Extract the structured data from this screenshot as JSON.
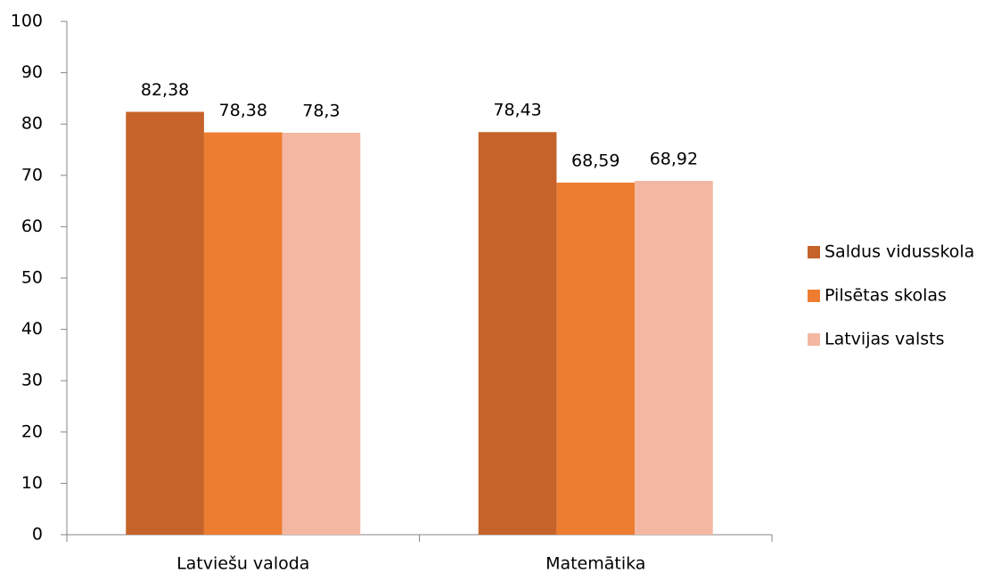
{
  "chart_data": {
    "type": "bar",
    "categories": [
      "Latviešu valoda",
      "Matemātika"
    ],
    "series": [
      {
        "name": "Saldus vidusskola",
        "color": "#c5632a",
        "values": [
          82.38,
          78.43
        ],
        "value_labels": [
          "82,38",
          "78,43"
        ]
      },
      {
        "name": "Pilsētas skolas",
        "color": "#ed7d31",
        "values": [
          78.38,
          68.59
        ],
        "value_labels": [
          "78,38",
          "68,59"
        ]
      },
      {
        "name": "Latvijas valsts",
        "color": "#f4b7a2",
        "values": [
          78.3,
          68.92
        ],
        "value_labels": [
          "78,3",
          "68,92"
        ]
      }
    ],
    "ylim": [
      0,
      100
    ],
    "yticks": [
      0,
      10,
      20,
      30,
      40,
      50,
      60,
      70,
      80,
      90,
      100
    ],
    "grid": false,
    "legend": "right"
  }
}
